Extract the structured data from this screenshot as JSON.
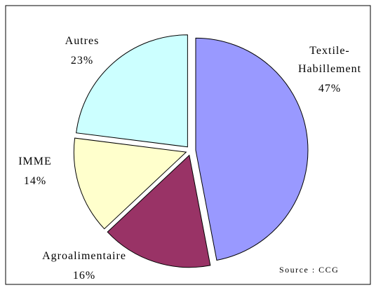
{
  "chart_data": {
    "type": "pie",
    "categories": [
      "Textile-Habillement",
      "Agroalimentaire",
      "IMME",
      "Autres"
    ],
    "values": [
      47,
      16,
      14,
      23
    ],
    "value_labels": [
      "47%",
      "16%",
      "14%",
      "23%"
    ],
    "colors": [
      "#9999ff",
      "#993366",
      "#ffffcc",
      "#ccffff"
    ],
    "annotation": "Source : CCG"
  }
}
